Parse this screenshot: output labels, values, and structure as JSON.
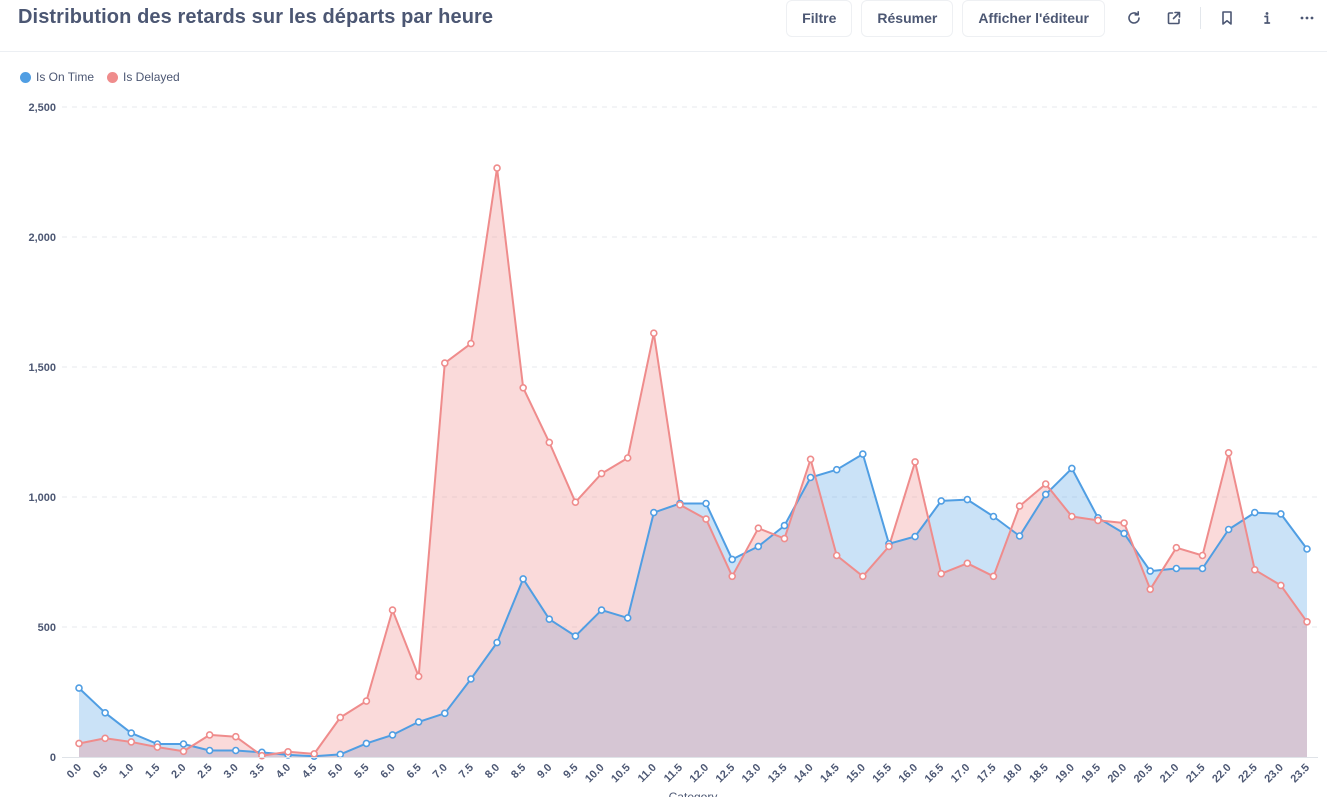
{
  "header": {
    "title": "Distribution des retards sur les départs par heure",
    "buttons": {
      "filter": "Filtre",
      "summarize": "Résumer",
      "editor": "Afficher l'éditeur"
    },
    "icons": [
      "refresh-icon",
      "open-external-icon",
      "bookmark-icon",
      "info-icon",
      "more-icon"
    ]
  },
  "colors": {
    "on_time": "#509ee3",
    "delayed": "#ef8c8c"
  },
  "chart_data": {
    "type": "area",
    "title": "Distribution des retards sur les départs par heure",
    "xlabel": "Category",
    "ylabel": "",
    "ylim": [
      0,
      2500
    ],
    "yticks": [
      0,
      500,
      1000,
      1500,
      2000,
      2500
    ],
    "ytick_labels": [
      "0",
      "500",
      "1,000",
      "1,500",
      "2,000",
      "2,500"
    ],
    "grid": true,
    "legend_position": "top-left",
    "categories": [
      "0.0",
      "0.5",
      "1.0",
      "1.5",
      "2.0",
      "2.5",
      "3.0",
      "3.5",
      "4.0",
      "4.5",
      "5.0",
      "5.5",
      "6.0",
      "6.5",
      "7.0",
      "7.5",
      "8.0",
      "8.5",
      "9.0",
      "9.5",
      "10.0",
      "10.5",
      "11.0",
      "11.5",
      "12.0",
      "12.5",
      "13.0",
      "13.5",
      "14.0",
      "14.5",
      "15.0",
      "15.5",
      "16.0",
      "16.5",
      "17.0",
      "17.5",
      "18.0",
      "18.5",
      "19.0",
      "19.5",
      "20.0",
      "20.5",
      "21.0",
      "21.5",
      "22.0",
      "22.5",
      "23.0",
      "23.5"
    ],
    "series": [
      {
        "name": "Is On Time",
        "values": [
          265,
          170,
          92,
          50,
          50,
          25,
          25,
          18,
          8,
          3,
          10,
          52,
          85,
          135,
          168,
          300,
          440,
          685,
          530,
          465,
          565,
          535,
          940,
          975,
          975,
          760,
          810,
          890,
          1075,
          1105,
          1165,
          820,
          848,
          985,
          990,
          925,
          850,
          1010,
          1110,
          920,
          860,
          715,
          725,
          725,
          875,
          940,
          935,
          800
        ]
      },
      {
        "name": "Is Delayed",
        "values": [
          52,
          72,
          58,
          38,
          22,
          85,
          78,
          5,
          20,
          12,
          152,
          215,
          565,
          310,
          1515,
          1590,
          2265,
          1420,
          1210,
          980,
          1090,
          1150,
          1630,
          970,
          915,
          695,
          880,
          840,
          1145,
          775,
          695,
          810,
          1135,
          705,
          745,
          695,
          965,
          1050,
          925,
          910,
          900,
          645,
          805,
          775,
          1170,
          720,
          660,
          520
        ]
      }
    ]
  }
}
